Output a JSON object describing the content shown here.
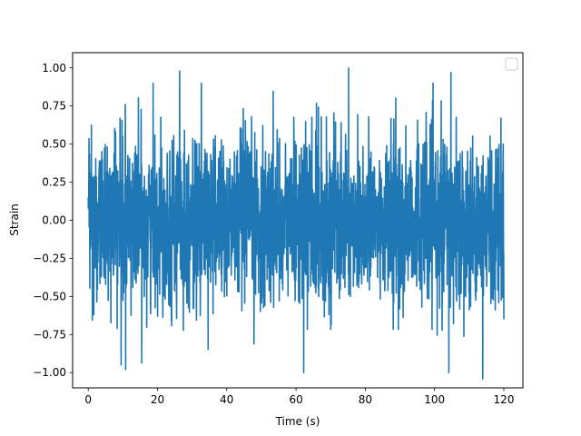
{
  "chart_data": {
    "type": "line",
    "title": "",
    "xlabel": "Time (s)",
    "ylabel": "Strain",
    "xlim": [
      -4.5,
      125.5
    ],
    "ylim": [
      -1.1,
      1.1
    ],
    "x_ticks": [
      0,
      20,
      40,
      60,
      80,
      100,
      120
    ],
    "x_tick_labels": [
      "0",
      "20",
      "40",
      "60",
      "80",
      "100",
      "120"
    ],
    "y_ticks": [
      -1.0,
      -0.75,
      -0.5,
      -0.25,
      0.0,
      0.25,
      0.5,
      0.75,
      1.0
    ],
    "y_tick_labels": [
      "−1.00",
      "−0.75",
      "−0.50",
      "−0.25",
      "0.00",
      "0.25",
      "0.50",
      "0.75",
      "1.00"
    ],
    "grid": false,
    "legend": {
      "placement": "upper-right",
      "entries": []
    },
    "series": [
      {
        "color": "#1f77b4",
        "x_range": [
          0,
          120
        ],
        "amplitude_min": -1.04,
        "amplitude_max": 1.0,
        "peaks": [
          {
            "x": 26.4,
            "y": 0.98
          },
          {
            "x": 75.2,
            "y": 1.0
          },
          {
            "x": 104.7,
            "y": 0.97
          },
          {
            "x": 62.2,
            "y": -1.0
          },
          {
            "x": 104.1,
            "y": -1.0
          },
          {
            "x": 113.9,
            "y": -1.04
          },
          {
            "x": 10.8,
            "y": -0.98
          },
          {
            "x": 9.5,
            "y": -0.95
          }
        ]
      }
    ]
  }
}
